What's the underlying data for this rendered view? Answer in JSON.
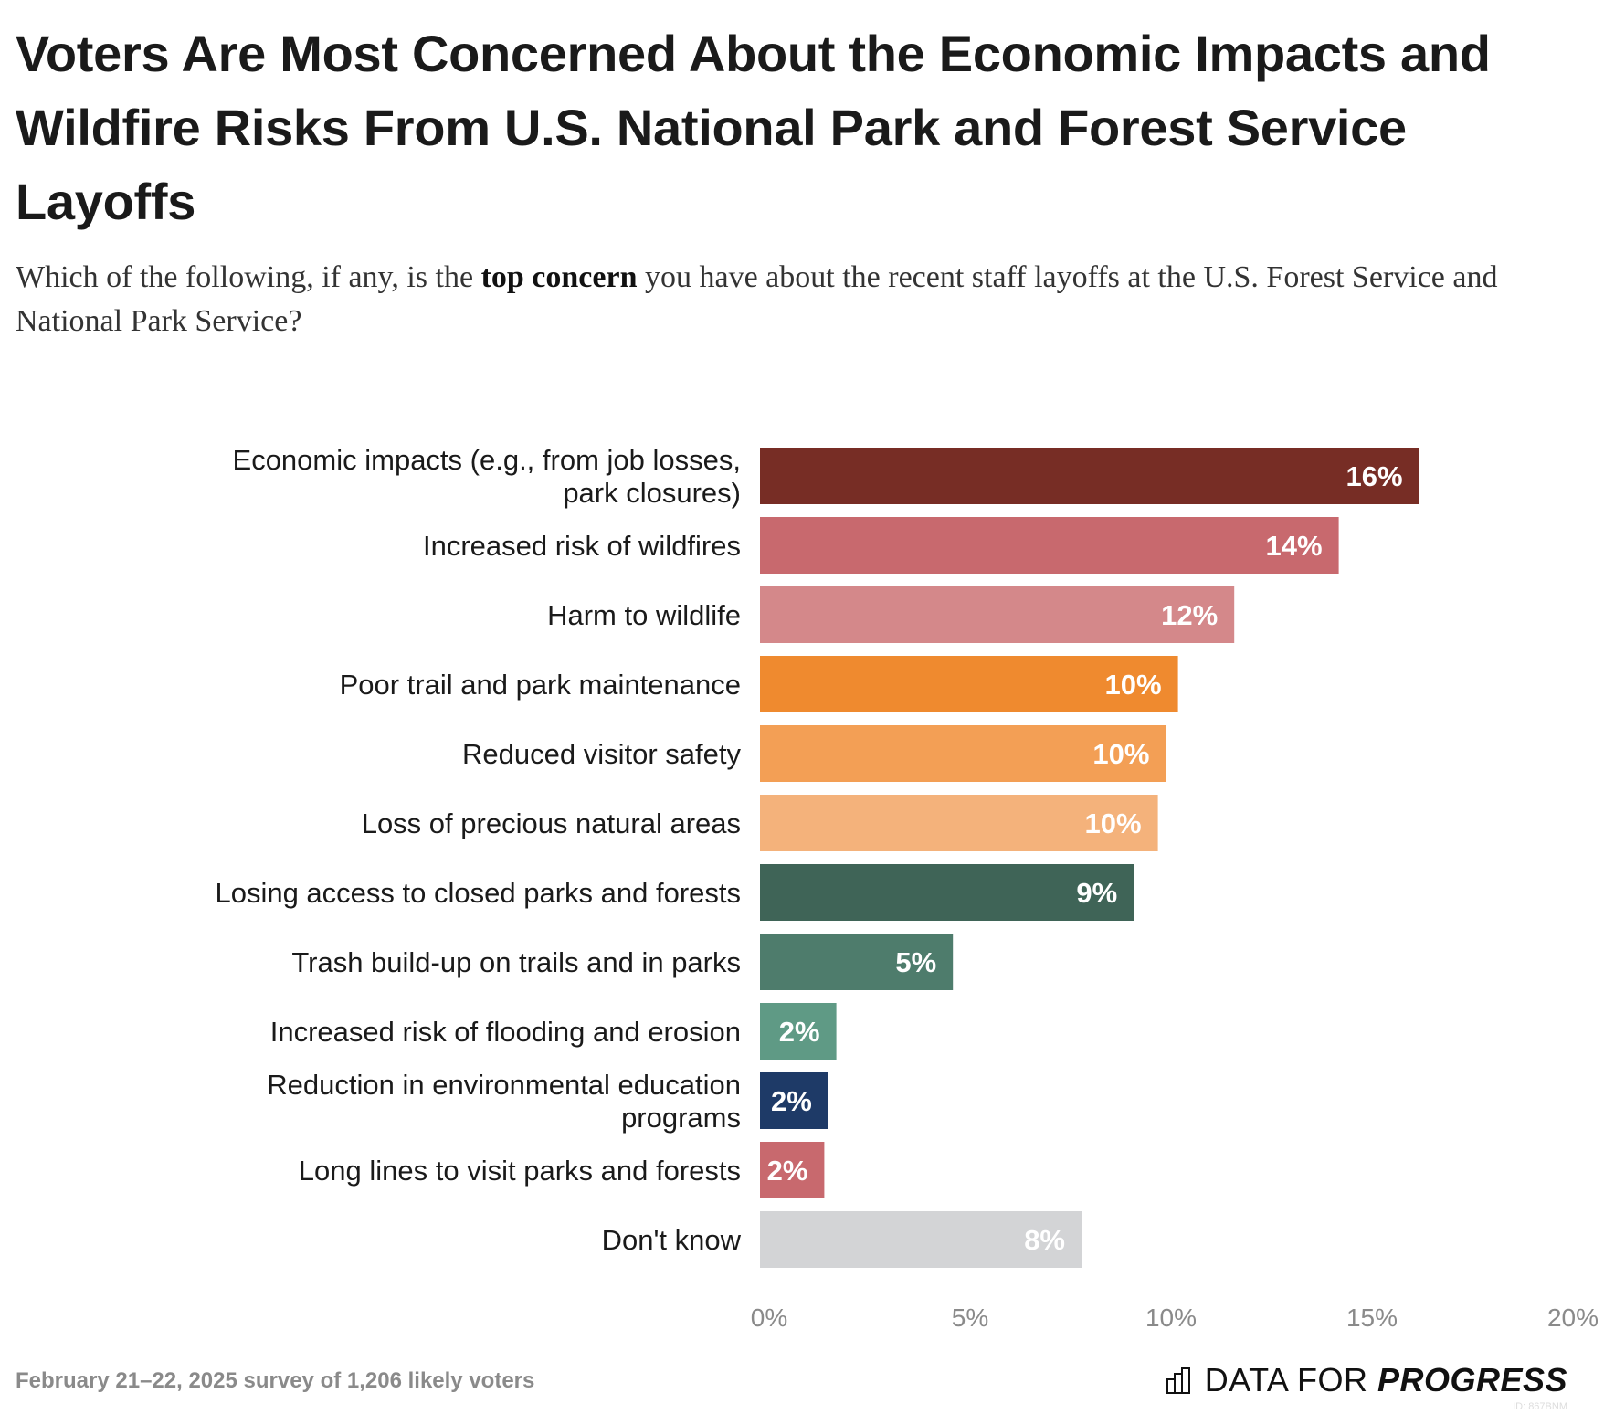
{
  "title": "Voters Are Most Concerned About the Economic Impacts and Wildfire Risks From U.S. National Park and Forest Service Layoffs",
  "subtitle": {
    "pre": "Which of the following, if any, is the ",
    "bold": "top concern",
    "post": " you have about the recent staff layoffs at the U.S. Forest Service and National Park Service?"
  },
  "footer": "February 21–22, 2025 survey of 1,206 likely voters",
  "logo": {
    "light": "DATA FOR ",
    "bold": "PROGRESS",
    "id": "ID: 867BNM"
  },
  "chart_data": {
    "type": "bar",
    "orientation": "horizontal",
    "categories": [
      "Economic impacts (e.g., from job losses, park closures)",
      "Increased risk of wildfires",
      "Harm to wildlife",
      "Poor trail and park maintenance",
      "Reduced visitor safety",
      "Loss of precious natural areas",
      "Losing access to closed parks and forests",
      "Trash build-up on trails and in parks",
      "Increased risk of flooding and erosion",
      "Reduction in environmental education programs",
      "Long lines to visit parks and forests",
      "Don't know"
    ],
    "values": [
      16.4,
      14.4,
      11.8,
      10.4,
      10.1,
      9.9,
      9.3,
      4.8,
      1.9,
      1.7,
      1.6,
      8.0
    ],
    "data_labels": [
      "16%",
      "14%",
      "12%",
      "10%",
      "10%",
      "10%",
      "9%",
      "5%",
      "2%",
      "2%",
      "2%",
      "8%"
    ],
    "colors": [
      "#772d25",
      "#c8696e",
      "#d4888a",
      "#ef8a2f",
      "#f39f55",
      "#f4b27b",
      "#3f6457",
      "#4e7c6c",
      "#5f9a85",
      "#1e3a67",
      "#c8696e",
      "#d3d4d6"
    ],
    "xlim": [
      0,
      20
    ],
    "xticks": [
      "0%",
      "5%",
      "10%",
      "15%",
      "20%"
    ],
    "grid": false,
    "xlabel": "",
    "ylabel": ""
  }
}
